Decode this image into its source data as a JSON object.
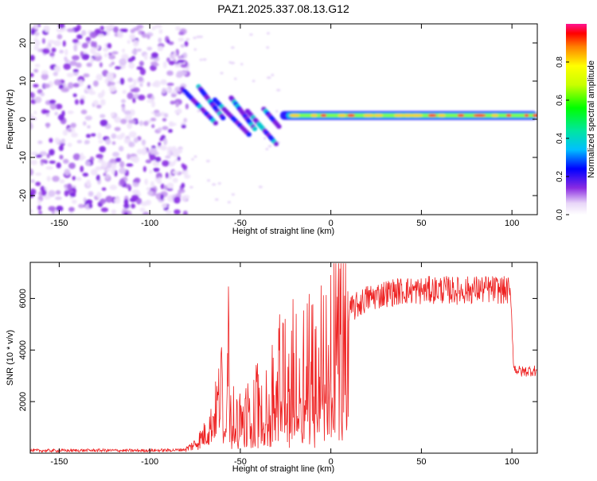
{
  "title": "PAZ1.2025.337.08.13.G12",
  "chart_data": [
    {
      "type": "heatmap",
      "title": "PAZ1.2025.337.08.13.G12",
      "xlabel": "Height of straight line (km)",
      "ylabel": "Frequency (Hz)",
      "xlim": [
        -166,
        114
      ],
      "ylim": [
        -25,
        25
      ],
      "xticks": [
        -150,
        -100,
        -50,
        0,
        50,
        100
      ],
      "yticks": [
        -20,
        -10,
        0,
        10,
        20
      ],
      "colorbar": {
        "label": "Normalized spectral amplitude",
        "range": [
          0,
          1
        ],
        "ticks": [
          0.0,
          0.2,
          0.4,
          0.6,
          0.8
        ]
      },
      "features": [
        {
          "name": "noise region",
          "x_range": [
            -166,
            -82
          ],
          "freq_range": [
            -25,
            25
          ],
          "amplitude": "0.0-0.2"
        },
        {
          "name": "descending signal streaks",
          "x_range": [
            -82,
            -28
          ],
          "freq_start": 8,
          "freq_end": -8,
          "amplitude": "0.1-0.3"
        },
        {
          "name": "carrier line",
          "x_range": [
            -28,
            114
          ],
          "freq": 1,
          "amplitude": "0.6-1.0"
        }
      ]
    },
    {
      "type": "line",
      "xlabel": "Height of straight line (km)",
      "ylabel": "SNR (10 * v/v)",
      "xlim": [
        -166,
        114
      ],
      "ylim": [
        0,
        7400
      ],
      "xticks": [
        -150,
        -100,
        -50,
        0,
        50,
        100
      ],
      "yticks": [
        2000,
        4000,
        6000
      ],
      "series": [
        {
          "name": "SNR",
          "color": "#ee2222",
          "x": [
            -166,
            -150,
            -130,
            -110,
            -95,
            -85,
            -80,
            -75,
            -70,
            -66,
            -62,
            -59,
            -57,
            -55,
            -52,
            -48,
            -44,
            -40,
            -36,
            -32,
            -28,
            -24,
            -20,
            -16,
            -12,
            -8,
            -4,
            0,
            5,
            10,
            20,
            30,
            40,
            50,
            60,
            70,
            80,
            90,
            98,
            99.5,
            101,
            105,
            110,
            114
          ],
          "y": [
            100,
            100,
            110,
            100,
            110,
            120,
            150,
            350,
            700,
            1100,
            2000,
            3000,
            4300,
            1800,
            1200,
            1600,
            2100,
            2300,
            2500,
            2800,
            3100,
            3400,
            3600,
            3800,
            4000,
            4200,
            4500,
            4700,
            5100,
            5500,
            6000,
            6200,
            6300,
            6300,
            6350,
            6300,
            6350,
            6350,
            6300,
            5900,
            3300,
            3150,
            3200,
            3200
          ]
        }
      ]
    }
  ]
}
